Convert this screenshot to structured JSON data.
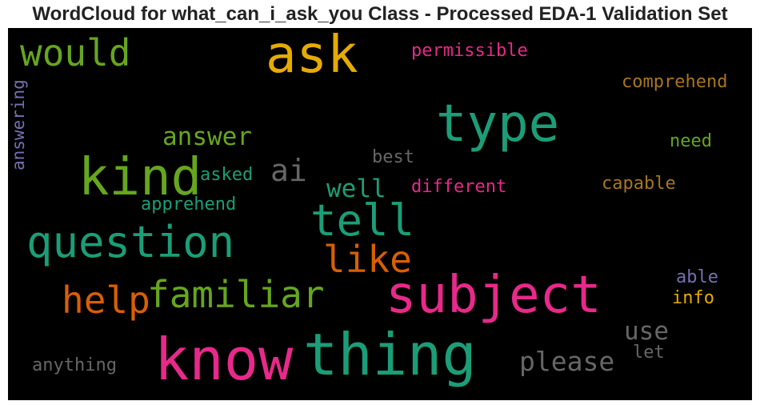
{
  "title": "WordCloud for what_can_i_ask_you Class - Processed EDA-1 Validation Set",
  "palette": {
    "background": "#000000",
    "green": "#1b9e77",
    "olive": "#66a61e",
    "orange": "#d95f02",
    "pink": "#e7298a",
    "purple": "#7570b3",
    "gold": "#e6ab02",
    "brown": "#a6761d",
    "gray": "#666666"
  },
  "chart_data": {
    "type": "wordcloud",
    "words": [
      {
        "text": "ask",
        "color": "#e6ab02"
      },
      {
        "text": "would",
        "color": "#66a61e"
      },
      {
        "text": "permissible",
        "color": "#e7298a"
      },
      {
        "text": "answering",
        "color": "#7570b3"
      },
      {
        "text": "comprehend",
        "color": "#a6761d"
      },
      {
        "text": "type",
        "color": "#1b9e77"
      },
      {
        "text": "answer",
        "color": "#66a61e"
      },
      {
        "text": "need",
        "color": "#66a61e"
      },
      {
        "text": "kind",
        "color": "#66a61e"
      },
      {
        "text": "ai",
        "color": "#666666"
      },
      {
        "text": "best",
        "color": "#666666"
      },
      {
        "text": "asked",
        "color": "#1b9e77"
      },
      {
        "text": "well",
        "color": "#1b9e77"
      },
      {
        "text": "different",
        "color": "#e7298a"
      },
      {
        "text": "capable",
        "color": "#a6761d"
      },
      {
        "text": "apprehend",
        "color": "#1b9e77"
      },
      {
        "text": "tell",
        "color": "#1b9e77"
      },
      {
        "text": "question",
        "color": "#1b9e77"
      },
      {
        "text": "like",
        "color": "#d95f02"
      },
      {
        "text": "help",
        "color": "#d95f02"
      },
      {
        "text": "familiar",
        "color": "#66a61e"
      },
      {
        "text": "subject",
        "color": "#e7298a"
      },
      {
        "text": "able",
        "color": "#7570b3"
      },
      {
        "text": "info",
        "color": "#e6ab02"
      },
      {
        "text": "use",
        "color": "#666666"
      },
      {
        "text": "let",
        "color": "#666666"
      },
      {
        "text": "know",
        "color": "#e7298a"
      },
      {
        "text": "thing",
        "color": "#1b9e77"
      },
      {
        "text": "please",
        "color": "#666666"
      },
      {
        "text": "anything",
        "color": "#666666"
      }
    ]
  }
}
